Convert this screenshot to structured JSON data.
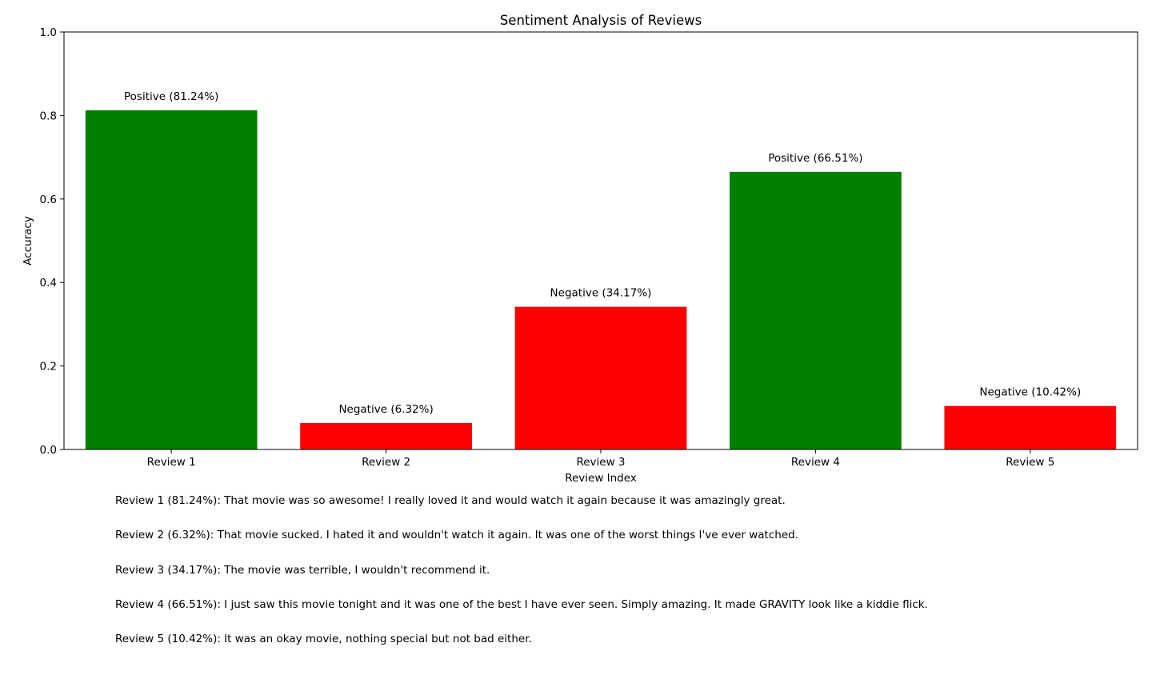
{
  "chart_data": {
    "type": "bar",
    "title": "Sentiment Analysis of Reviews",
    "xlabel": "Review Index",
    "ylabel": "Accuracy",
    "ylim": [
      0,
      1.0
    ],
    "yticks": [
      "0.0",
      "0.2",
      "0.4",
      "0.6",
      "0.8",
      "1.0"
    ],
    "grid": false,
    "categories": [
      "Review 1",
      "Review 2",
      "Review 3",
      "Review 4",
      "Review 5"
    ],
    "values": [
      0.8124,
      0.0632,
      0.3417,
      0.6651,
      0.1042
    ],
    "sentiments": [
      "Positive",
      "Negative",
      "Negative",
      "Positive",
      "Negative"
    ],
    "bar_labels": [
      "Positive (81.24%)",
      "Negative (6.32%)",
      "Negative (34.17%)",
      "Positive (66.51%)",
      "Negative (10.42%)"
    ],
    "colors": {
      "Positive": "#008000",
      "Negative": "#ff0000"
    }
  },
  "review_notes": [
    "Review 1 (81.24%): That movie was so awesome! I really loved it and would watch it again because it was amazingly great.",
    "Review 2 (6.32%): That movie sucked. I hated it and wouldn't watch it again. It was one of the worst things I've ever watched.",
    "Review 3 (34.17%): The movie was terrible, I wouldn't recommend it.",
    "Review 4 (66.51%): I just saw this movie tonight and it was one of the best I have ever seen. Simply amazing. It made GRAVITY look like a kiddie flick.",
    "Review 5 (10.42%): It was an okay movie, nothing special but not bad either."
  ]
}
